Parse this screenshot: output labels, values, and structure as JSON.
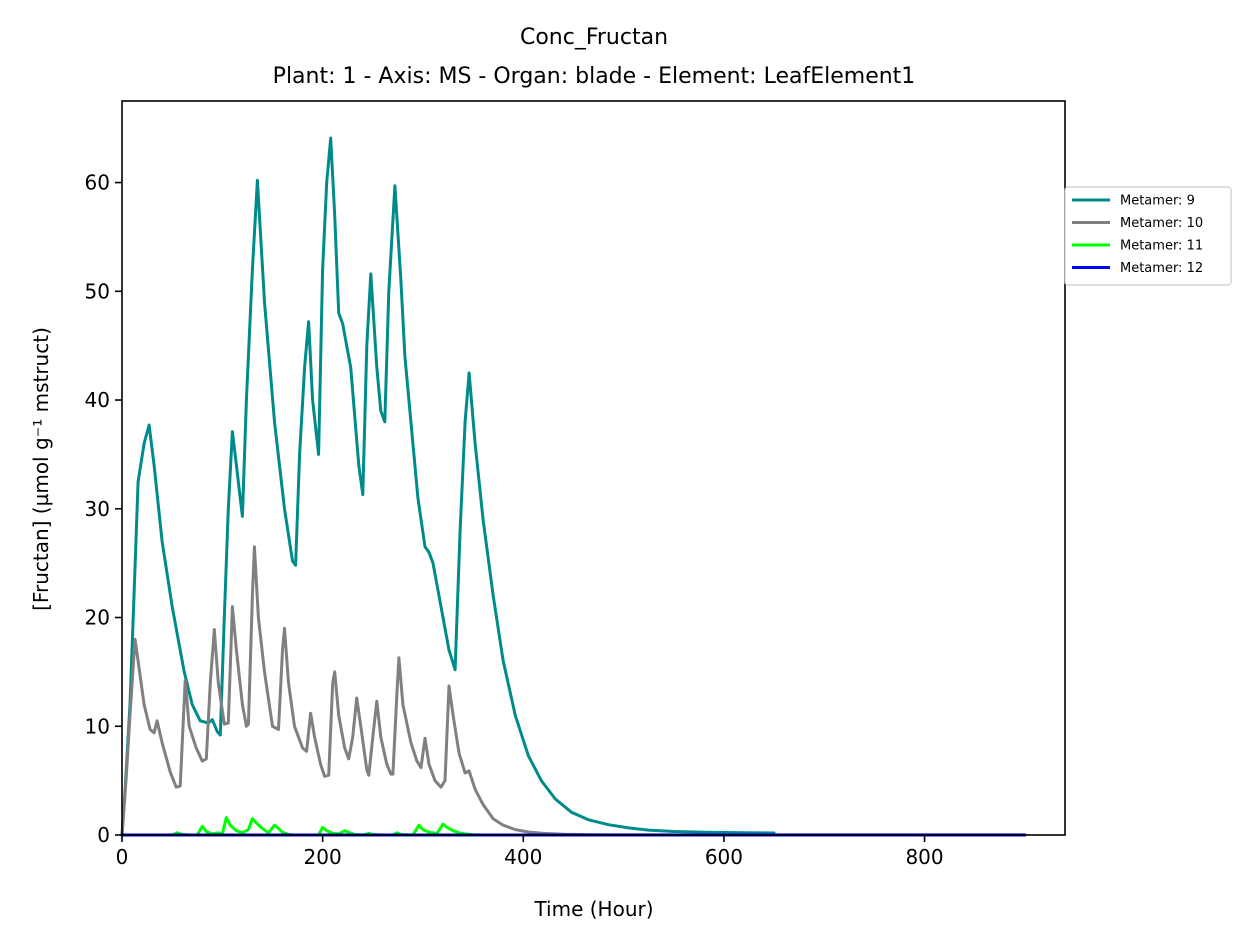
{
  "chart_data": {
    "type": "line",
    "title": "Conc_Fructan",
    "subtitle": "Plant: 1 - Axis: MS - Organ: blade - Element: LeafElement1",
    "xlabel": "Time (Hour)",
    "ylabel": "[Fructan] (µmol g⁻¹ mstruct)",
    "xlim": [
      0,
      940
    ],
    "ylim": [
      0,
      67.5
    ],
    "xticks": [
      0,
      200,
      400,
      600,
      800
    ],
    "yticks": [
      0,
      10,
      20,
      30,
      40,
      50,
      60
    ],
    "grid": false,
    "legend_position": "outside-right",
    "series": [
      {
        "name": "Metamer: 9",
        "color": "#008b8b",
        "points": [
          [
            0,
            0
          ],
          [
            3,
            4
          ],
          [
            8,
            12
          ],
          [
            12,
            22
          ],
          [
            16,
            32.5
          ],
          [
            22,
            36
          ],
          [
            27,
            37.7
          ],
          [
            32,
            34
          ],
          [
            40,
            27
          ],
          [
            50,
            21
          ],
          [
            62,
            15
          ],
          [
            70,
            12
          ],
          [
            78,
            10.5
          ],
          [
            86,
            10.3
          ],
          [
            90,
            10.6
          ],
          [
            95,
            9.5
          ],
          [
            98,
            9.2
          ],
          [
            102,
            20
          ],
          [
            106,
            30
          ],
          [
            110,
            37.1
          ],
          [
            114,
            34
          ],
          [
            120,
            29.3
          ],
          [
            124,
            40
          ],
          [
            130,
            52
          ],
          [
            135,
            60.2
          ],
          [
            142,
            49
          ],
          [
            152,
            38
          ],
          [
            162,
            30
          ],
          [
            170,
            25.2
          ],
          [
            173,
            24.8
          ],
          [
            177,
            35
          ],
          [
            182,
            43
          ],
          [
            186,
            47.2
          ],
          [
            190,
            40
          ],
          [
            196,
            35
          ],
          [
            200,
            52
          ],
          [
            204,
            60
          ],
          [
            208,
            64.1
          ],
          [
            212,
            57
          ],
          [
            216,
            48
          ],
          [
            220,
            47
          ],
          [
            224,
            45
          ],
          [
            228,
            43
          ],
          [
            236,
            34
          ],
          [
            240,
            31.3
          ],
          [
            244,
            45
          ],
          [
            248,
            51.6
          ],
          [
            254,
            43
          ],
          [
            258,
            39
          ],
          [
            262,
            38
          ],
          [
            266,
            50
          ],
          [
            272,
            59.7
          ],
          [
            278,
            51
          ],
          [
            282,
            44
          ],
          [
            288,
            38
          ],
          [
            295,
            31
          ],
          [
            302,
            26.5
          ],
          [
            306,
            26
          ],
          [
            310,
            25
          ],
          [
            318,
            21
          ],
          [
            326,
            17
          ],
          [
            332,
            15.2
          ],
          [
            337,
            28
          ],
          [
            342,
            38
          ],
          [
            346,
            42.5
          ],
          [
            352,
            36
          ],
          [
            360,
            29
          ],
          [
            370,
            22
          ],
          [
            380,
            16
          ],
          [
            392,
            11
          ],
          [
            405,
            7.3
          ],
          [
            418,
            5
          ],
          [
            432,
            3.3
          ],
          [
            448,
            2.1
          ],
          [
            465,
            1.4
          ],
          [
            485,
            0.95
          ],
          [
            505,
            0.65
          ],
          [
            525,
            0.45
          ],
          [
            550,
            0.32
          ],
          [
            580,
            0.25
          ],
          [
            620,
            0.2
          ],
          [
            650,
            0.18
          ]
        ]
      },
      {
        "name": "Metamer: 10",
        "color": "#808080",
        "points": [
          [
            0,
            0
          ],
          [
            4,
            5
          ],
          [
            8,
            11
          ],
          [
            13,
            18
          ],
          [
            16,
            16
          ],
          [
            22,
            12
          ],
          [
            28,
            9.7
          ],
          [
            32,
            9.4
          ],
          [
            35,
            10.5
          ],
          [
            40,
            8.5
          ],
          [
            48,
            5.8
          ],
          [
            54,
            4.4
          ],
          [
            58,
            4.5
          ],
          [
            63,
            14.2
          ],
          [
            67,
            10
          ],
          [
            74,
            8
          ],
          [
            80,
            6.8
          ],
          [
            84,
            7
          ],
          [
            88,
            14
          ],
          [
            92,
            18.9
          ],
          [
            96,
            14
          ],
          [
            102,
            10.2
          ],
          [
            106,
            10.3
          ],
          [
            110,
            21
          ],
          [
            114,
            17
          ],
          [
            120,
            12
          ],
          [
            124,
            10
          ],
          [
            126,
            10.2
          ],
          [
            130,
            22
          ],
          [
            132,
            26.5
          ],
          [
            136,
            20
          ],
          [
            142,
            15
          ],
          [
            150,
            10
          ],
          [
            156,
            9.7
          ],
          [
            160,
            17
          ],
          [
            162,
            19
          ],
          [
            166,
            14
          ],
          [
            172,
            10
          ],
          [
            180,
            8
          ],
          [
            184,
            7.7
          ],
          [
            188,
            11.2
          ],
          [
            192,
            9
          ],
          [
            198,
            6.5
          ],
          [
            202,
            5.4
          ],
          [
            206,
            5.5
          ],
          [
            210,
            14
          ],
          [
            212,
            15
          ],
          [
            216,
            11
          ],
          [
            222,
            8
          ],
          [
            226,
            7
          ],
          [
            230,
            9
          ],
          [
            234,
            12.6
          ],
          [
            238,
            10
          ],
          [
            244,
            6
          ],
          [
            246,
            5.5
          ],
          [
            250,
            9
          ],
          [
            254,
            12.3
          ],
          [
            258,
            9
          ],
          [
            264,
            6.5
          ],
          [
            268,
            5.6
          ],
          [
            270,
            5.6
          ],
          [
            274,
            13
          ],
          [
            276,
            16.3
          ],
          [
            280,
            12
          ],
          [
            288,
            8.5
          ],
          [
            294,
            6.8
          ],
          [
            298,
            6.2
          ],
          [
            302,
            8.9
          ],
          [
            306,
            6.5
          ],
          [
            312,
            5
          ],
          [
            318,
            4.4
          ],
          [
            322,
            5
          ],
          [
            326,
            13.7
          ],
          [
            330,
            11
          ],
          [
            336,
            7.5
          ],
          [
            342,
            5.7
          ],
          [
            346,
            5.9
          ],
          [
            352,
            4.2
          ],
          [
            360,
            2.8
          ],
          [
            370,
            1.5
          ],
          [
            380,
            0.9
          ],
          [
            392,
            0.5
          ],
          [
            405,
            0.28
          ],
          [
            420,
            0.15
          ],
          [
            440,
            0.07
          ],
          [
            470,
            0.03
          ],
          [
            500,
            0.01
          ],
          [
            600,
            0.01
          ],
          [
            700,
            0.01
          ],
          [
            800,
            0.01
          ],
          [
            900,
            0.01
          ]
        ]
      },
      {
        "name": "Metamer: 11",
        "color": "#00ff00",
        "points": [
          [
            0,
            0
          ],
          [
            50,
            0
          ],
          [
            55,
            0.2
          ],
          [
            60,
            0.05
          ],
          [
            70,
            0
          ],
          [
            75,
            0
          ],
          [
            80,
            0.8
          ],
          [
            84,
            0.3
          ],
          [
            90,
            0.1
          ],
          [
            96,
            0.2
          ],
          [
            100,
            0.1
          ],
          [
            104,
            1.6
          ],
          [
            108,
            0.9
          ],
          [
            114,
            0.4
          ],
          [
            120,
            0.2
          ],
          [
            126,
            0.5
          ],
          [
            130,
            1.5
          ],
          [
            134,
            1.1
          ],
          [
            140,
            0.6
          ],
          [
            146,
            0.2
          ],
          [
            152,
            0.9
          ],
          [
            156,
            0.6
          ],
          [
            160,
            0.25
          ],
          [
            166,
            0.05
          ],
          [
            172,
            0
          ],
          [
            190,
            0
          ],
          [
            196,
            0
          ],
          [
            200,
            0.7
          ],
          [
            204,
            0.4
          ],
          [
            210,
            0.15
          ],
          [
            216,
            0.1
          ],
          [
            222,
            0.4
          ],
          [
            226,
            0.25
          ],
          [
            232,
            0.05
          ],
          [
            240,
            0
          ],
          [
            246,
            0.15
          ],
          [
            250,
            0.05
          ],
          [
            260,
            0
          ],
          [
            270,
            0
          ],
          [
            274,
            0.2
          ],
          [
            278,
            0.05
          ],
          [
            290,
            0
          ],
          [
            296,
            0.9
          ],
          [
            300,
            0.5
          ],
          [
            306,
            0.25
          ],
          [
            314,
            0.15
          ],
          [
            320,
            1.0
          ],
          [
            324,
            0.7
          ],
          [
            330,
            0.4
          ],
          [
            336,
            0.2
          ],
          [
            342,
            0.1
          ],
          [
            350,
            0.02
          ],
          [
            360,
            0
          ],
          [
            400,
            0
          ],
          [
            500,
            0
          ],
          [
            600,
            0
          ],
          [
            700,
            0
          ],
          [
            800,
            0
          ],
          [
            900,
            0
          ]
        ]
      },
      {
        "name": "Metamer: 12",
        "color": "#0000ff",
        "points": [
          [
            0,
            0
          ],
          [
            100,
            0
          ],
          [
            200,
            0
          ],
          [
            300,
            0
          ],
          [
            400,
            0
          ],
          [
            500,
            0
          ],
          [
            600,
            0
          ],
          [
            700,
            0
          ],
          [
            800,
            0
          ],
          [
            900,
            0
          ]
        ]
      }
    ]
  }
}
